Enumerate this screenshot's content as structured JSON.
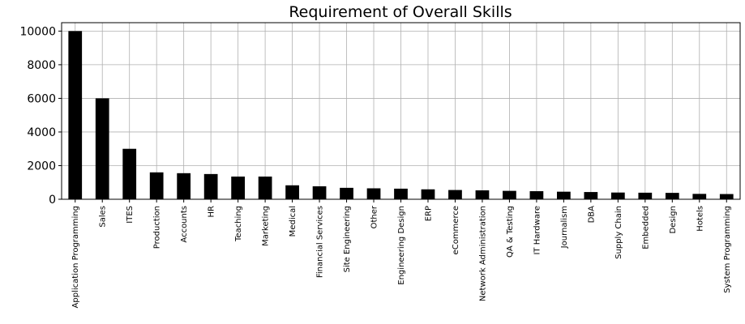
{
  "chart_data": {
    "type": "bar",
    "title": "Requirement of Overall Skills",
    "xlabel": "",
    "ylabel": "",
    "ylim": [
      0,
      10500
    ],
    "yticks": [
      0,
      2000,
      4000,
      6000,
      8000,
      10000
    ],
    "ytick_labels": [
      "0",
      "2000",
      "4000",
      "6000",
      "8000",
      "10000"
    ],
    "grid": true,
    "bar_color": "#000000",
    "grid_color": "#b0b0b0",
    "categories": [
      "Application Programming",
      "Sales",
      "ITES",
      "Production",
      "Accounts",
      "HR",
      "Teaching",
      "Marketing",
      "Medical",
      "Financial Services",
      "Site Engineering",
      "Other",
      "Engineering Design",
      "ERP",
      "eCommerce",
      "Network Administration",
      "QA & Testing",
      "IT Hardware",
      "Journalism",
      "DBA",
      "Supply Chain",
      "Embedded",
      "Design",
      "Hotels",
      "System Programming"
    ],
    "values": [
      10000,
      6000,
      3000,
      1600,
      1550,
      1500,
      1350,
      1350,
      830,
      770,
      680,
      650,
      630,
      590,
      550,
      530,
      500,
      480,
      450,
      430,
      400,
      390,
      380,
      320,
      310
    ]
  }
}
